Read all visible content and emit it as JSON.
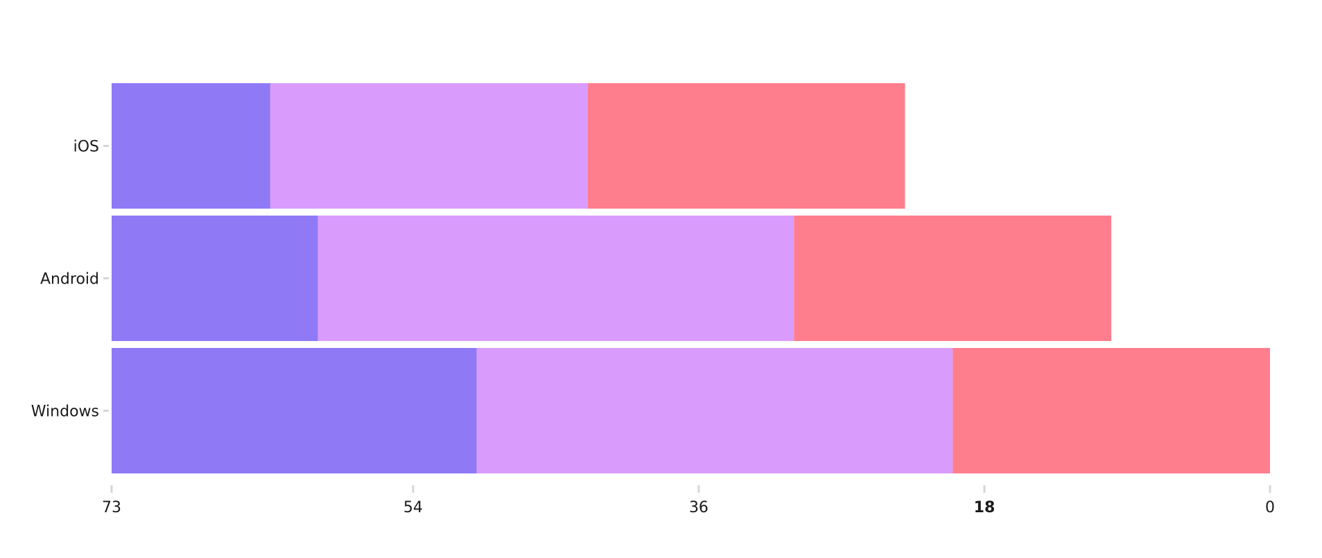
{
  "chart_data": {
    "type": "bar",
    "orientation": "horizontal",
    "stacked": true,
    "x_reversed": true,
    "categories": [
      "iOS",
      "Android",
      "Windows"
    ],
    "series": [
      {
        "color": "#8f79f5",
        "values": [
          10,
          13,
          23
        ]
      },
      {
        "color": "#d99cfc",
        "values": [
          20,
          30,
          30
        ]
      },
      {
        "color": "#ff7e8d",
        "values": [
          20,
          20,
          20
        ]
      }
    ],
    "xlim": [
      73,
      0
    ],
    "xticks": [
      73,
      54,
      36,
      18,
      0
    ],
    "highlighted_tick": 18,
    "title": "",
    "xlabel": "",
    "ylabel": "",
    "grid": false,
    "legend": "none"
  }
}
